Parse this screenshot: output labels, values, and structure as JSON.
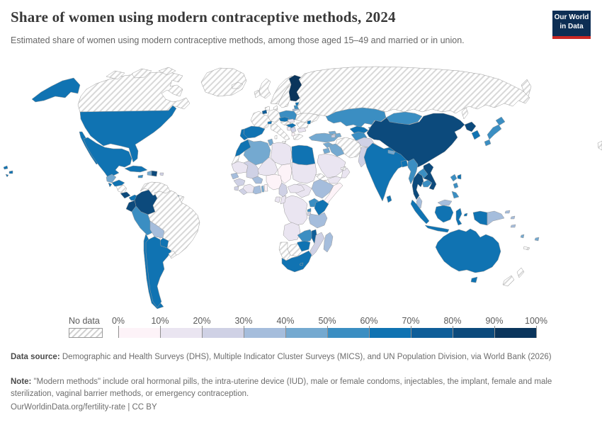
{
  "header": {
    "title": "Share of women using modern contraceptive methods, 2024",
    "subtitle": "Estimated share of women using modern contraceptive methods, among those aged 15–49 and married or in union.",
    "logo": {
      "line1": "Our World",
      "line2": "in Data",
      "bg_color": "#0d2e54",
      "bar_color": "#cb2824"
    }
  },
  "legend": {
    "no_data_label": "No data",
    "tick_labels": [
      "0%",
      "10%",
      "20%",
      "30%",
      "40%",
      "50%",
      "60%",
      "70%",
      "80%",
      "90%",
      "100%"
    ]
  },
  "footer": {
    "data_source_label": "Data source:",
    "data_source_text": " Demographic and Health Surveys (DHS), Multiple Indicator Cluster Surveys (MICS), and UN Population Division, via World Bank (2026)",
    "note_label": "Note:",
    "note_text": " \"Modern methods\" include oral hormonal pills, the intra-uterine device (IUD), male or female condoms, injectables, the implant, female and male sterilization, vaginal barrier methods, or emergency contraception.",
    "cite": "OurWorldinData.org/fertility-rate | CC BY"
  },
  "chart_data": {
    "type": "heatmap",
    "subtype": "world-choropleth",
    "title": "Share of women using modern contraceptive methods, 2024",
    "unit": "share of married/in-union women aged 15–49 using modern contraceptive methods",
    "legend_position": "bottom",
    "scale": {
      "bins": [
        "0-10%",
        "10-20%",
        "20-30%",
        "30-40%",
        "40-50%",
        "50-60%",
        "60-70%",
        "70-80%",
        "80-90%",
        "90-100%"
      ],
      "colors": [
        "#fdf3f8",
        "#eae5f1",
        "#cfd1e5",
        "#a5bddc",
        "#74a9d0",
        "#3b8ec2",
        "#1073b2",
        "#0f5e99",
        "#0c4a7c",
        "#0a355c"
      ],
      "no_data": "hatched",
      "no_data_hatch_color": "#d8d8d8",
      "border_color": "#9a9a9a"
    },
    "countries": {
      "United States": "60-70%",
      "Canada": "no-data",
      "Greenland": "no-data",
      "Mexico": "60-70%",
      "Guatemala": "40-50%",
      "Honduras": "60-70%",
      "El Salvador": "60-70%",
      "Nicaragua": "no-data",
      "Costa Rica": "80-90%",
      "Panama": "60-70%",
      "Cuba": "60-70%",
      "Jamaica": "50-60%",
      "Haiti": "40-50%",
      "Dominican Republic": "80-90%",
      "Puerto Rico": "20-30%",
      "Colombia": "80-90%",
      "Venezuela": "no-data",
      "Guyana": "30-40%",
      "Suriname": "40-50%",
      "French Guiana": "no-data",
      "Ecuador": "80-90%",
      "Peru": "50-60%",
      "Brazil": "no-data",
      "Bolivia": "30-40%",
      "Paraguay": "60-70%",
      "Chile": "60-70%",
      "Argentina": "60-70%",
      "Uruguay": "no-data",
      "Iceland": "no-data",
      "Ireland": "no-data",
      "United Kingdom": "no-data",
      "Norway": "no-data",
      "Sweden": "no-data",
      "Finland": "90-100%",
      "Denmark": "no-data",
      "Estonia": "60-70%",
      "Latvia": "50-60%",
      "Lithuania": "30-40%",
      "Poland": "50-60%",
      "Germany": "no-data",
      "Netherlands": "no-data",
      "Belgium": "70-80%",
      "France": "no-data",
      "Switzerland": "60-70%",
      "Czechia": "60-70%",
      "Austria": "no-data",
      "Slovakia": "10-20%",
      "Hungary": "60-70%",
      "Ukraine": "no-data",
      "Belarus": "no-data",
      "Romania": "no-data",
      "Moldova": "60-70%",
      "Serbia": "20-30%",
      "Bosnia and Herzegovina": "10-20%",
      "Albania": "0-10%",
      "Bulgaria": "10-20%",
      "Greece": "no-data",
      "Italy": "no-data",
      "Spain": "60-70%",
      "Portugal": "60-70%",
      "Morocco": "60-70%",
      "Western Sahara": "no-data",
      "Algeria": "40-50%",
      "Tunisia": "40-50%",
      "Libya": "10-20%",
      "Egypt": "60-70%",
      "Mauritania": "10-20%",
      "Mali": "20-30%",
      "Niger": "10-20%",
      "Chad": "0-10%",
      "Sudan": "10-20%",
      "Eritrea": "no-data",
      "Djibouti": "no-data",
      "Ethiopia": "30-40%",
      "Somalia": "0-10%",
      "South Sudan": "10-20%",
      "Senegal": "30-40%",
      "Guinea": "20-30%",
      "Sierra Leone": "20-30%",
      "Liberia": "20-30%",
      "Cote d'Ivoire": "10-20%",
      "Ghana": "30-40%",
      "Togo": "40-50%",
      "Benin": "0-10%",
      "Burkina Faso": "30-40%",
      "Nigeria": "0-10%",
      "Cameroon": "20-30%",
      "Central African Republic": "10-20%",
      "DR Congo": "10-20%",
      "Congo": "10-20%",
      "Gabon": "10-20%",
      "Uganda": "50-60%",
      "Kenya": "60-70%",
      "Rwanda": "50-60%",
      "Burundi": "20-30%",
      "Tanzania": "30-40%",
      "Angola": "10-20%",
      "Zambia": "50-60%",
      "Malawi": "70-80%",
      "Mozambique": "20-30%",
      "Zimbabwe": "60-70%",
      "Botswana": "no-data",
      "Namibia": "no-data",
      "South Africa": "60-70%",
      "Lesotho": "60-70%",
      "Madagascar": "30-40%",
      "Turkey": "40-50%",
      "Syria": "40-50%",
      "Iraq": "40-50%",
      "Jordan": "40-50%",
      "Saudi Arabia": "10-20%",
      "Yemen": "10-20%",
      "Oman": "10-20%",
      "United Arab Emirates": "no-data",
      "Iran": "no-data",
      "Georgia": "40-50%",
      "Armenia": "20-30%",
      "Azerbaijan": "40-50%",
      "Kazakhstan": "50-60%",
      "Uzbekistan": "60-70%",
      "Turkmenistan": "50-60%",
      "Kyrgyzstan": "50-60%",
      "Tajikistan": "20-30%",
      "Afghanistan": "20-30%",
      "Pakistan": "20-30%",
      "Russia": "no-data",
      "Mongolia": "50-60%",
      "China": "80-90%",
      "North Korea": "80-90%",
      "South Korea": "60-70%",
      "Japan": "50-60%",
      "Taiwan": "60-70%",
      "India": "60-70%",
      "Nepal": "40-50%",
      "Bangladesh": "60-70%",
      "Sri Lanka": "60-70%",
      "Myanmar": "50-60%",
      "Thailand": "80-90%",
      "Laos": "50-60%",
      "Cambodia": "50-60%",
      "Vietnam": "80-90%",
      "Malaysia": "30-40%",
      "Indonesia": "60-70%",
      "Philippines": "50-60%",
      "Papua New Guinea": "30-40%",
      "Australia": "60-70%",
      "New Zealand": "no-data",
      "Solomon Islands": "30-40%",
      "Vanuatu": "40-50%",
      "Fiji": "40-50%",
      "New Caledonia": "no-data"
    }
  }
}
